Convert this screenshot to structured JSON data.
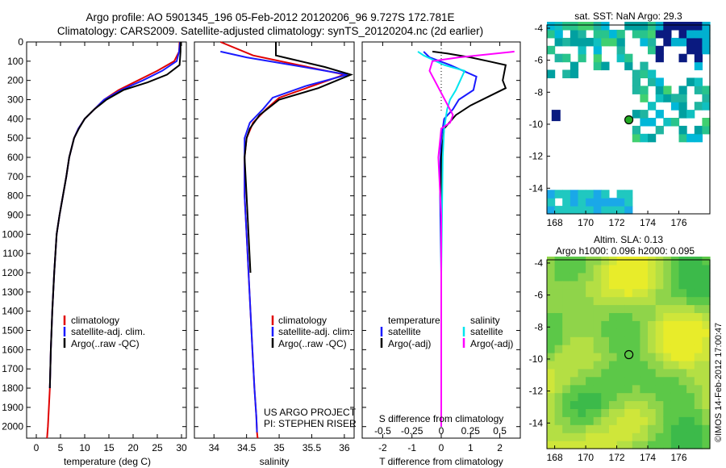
{
  "title_line1": "Argo profile: AO 5901345_196 05-Feb-2012 20120206_96 9.727S 172.781E",
  "title_line2": "Climatology: CARS2009. Satellite-adjusted climatology: synTS_20120204.nc (2d earlier)",
  "colors": {
    "climatology": "#e00000",
    "satellite": "#1a1aff",
    "argo": "#000000",
    "sal_satellite": "#00e5ee",
    "sal_argo": "#ff00ff"
  },
  "chart_data": [
    {
      "id": "temperature",
      "type": "line",
      "xlabel": "temperature (deg C)",
      "ylabel": "",
      "xlim": [
        -2,
        31
      ],
      "ylim": [
        2060,
        0
      ],
      "xticks": [
        0,
        5,
        10,
        15,
        20,
        25,
        30
      ],
      "yticks": [
        0,
        100,
        200,
        300,
        400,
        500,
        600,
        700,
        800,
        900,
        1000,
        1100,
        1200,
        1300,
        1400,
        1500,
        1600,
        1700,
        1800,
        1900,
        2000
      ],
      "legend": [
        "climatology",
        "satellite-adj. clim.",
        "Argo(..raw -QC)"
      ],
      "legend_position": "lower-center",
      "series": [
        {
          "name": "climatology",
          "color_key": "climatology",
          "x": [
            29.6,
            29.5,
            28.5,
            25.0,
            21.0,
            17.0,
            14.0,
            12.0,
            10.0,
            8.7,
            7.8,
            6.8,
            6.2,
            5.5,
            4.8,
            4.2,
            3.7,
            3.3,
            3.0,
            2.8,
            2.6,
            2.4,
            2.25,
            2.2
          ],
          "depth": [
            0,
            50,
            100,
            150,
            200,
            250,
            300,
            350,
            400,
            450,
            500,
            600,
            700,
            800,
            900,
            1000,
            1200,
            1400,
            1600,
            1800,
            1900,
            2000,
            2050,
            2060
          ]
        },
        {
          "name": "satellite-adj. clim.",
          "color_key": "satellite",
          "x": [
            29.7,
            29.5,
            29.0,
            26.0,
            22.0,
            17.5,
            14.0,
            12.0,
            10.0,
            8.7,
            7.8,
            6.8,
            6.2,
            5.5,
            4.8,
            4.2,
            3.7,
            3.3,
            3.0,
            2.8
          ],
          "depth": [
            0,
            50,
            100,
            150,
            200,
            250,
            300,
            350,
            400,
            450,
            500,
            600,
            700,
            800,
            900,
            1000,
            1200,
            1400,
            1600,
            1800
          ]
        },
        {
          "name": "Argo(..raw -QC)",
          "color_key": "argo",
          "x": [
            29.8,
            29.8,
            29.6,
            27.0,
            23.0,
            18.0,
            14.5,
            12.0,
            10.0,
            8.8,
            7.8,
            6.8,
            6.2,
            5.5,
            4.8,
            4.2,
            3.7,
            3.3,
            3.0,
            2.8
          ],
          "depth": [
            0,
            50,
            120,
            170,
            210,
            250,
            300,
            350,
            400,
            450,
            500,
            600,
            700,
            800,
            900,
            1000,
            1200,
            1400,
            1600,
            1800
          ]
        }
      ]
    },
    {
      "id": "salinity",
      "type": "line",
      "xlabel": "salinity",
      "ylabel": "",
      "xlim": [
        33.7,
        36.15
      ],
      "ylim": [
        2060,
        0
      ],
      "xticks": [
        34,
        34.5,
        35,
        35.5,
        36
      ],
      "legend": [
        "climatology",
        "satellite-adj. clim.",
        "Argo(..raw -QC)"
      ],
      "legend_position": "lower-center",
      "annotations": [
        "US ARGO PROJECT",
        "PI: STEPHEN RISER"
      ],
      "series": [
        {
          "name": "climatology",
          "color_key": "climatology",
          "x": [
            34.1,
            34.6,
            35.3,
            36.0,
            35.5,
            35.0,
            34.8,
            34.6,
            34.5,
            34.47,
            34.47,
            34.5,
            34.53,
            34.56,
            34.59,
            34.62,
            34.65,
            34.66,
            34.67
          ],
          "depth": [
            0,
            70,
            120,
            170,
            230,
            290,
            350,
            420,
            500,
            600,
            800,
            1000,
            1200,
            1400,
            1600,
            1800,
            1950,
            2030,
            2060
          ]
        },
        {
          "name": "satellite-adj. clim.",
          "color_key": "satellite",
          "x": [
            34.1,
            34.5,
            35.2,
            36.05,
            35.4,
            34.9,
            34.75,
            34.55,
            34.47,
            34.47,
            34.47,
            34.5,
            34.53,
            34.56,
            34.59,
            34.62,
            34.65,
            34.66
          ],
          "depth": [
            50,
            80,
            120,
            170,
            230,
            290,
            350,
            420,
            500,
            600,
            800,
            1000,
            1200,
            1400,
            1600,
            1800,
            1950,
            2030
          ]
        },
        {
          "name": "Argo(..raw -QC)",
          "color_key": "argo",
          "x": [
            34.95,
            34.95,
            35.2,
            35.7,
            36.1,
            35.6,
            35.0,
            34.7,
            34.55,
            34.5,
            34.47,
            34.5,
            34.53,
            34.56
          ],
          "depth": [
            0,
            70,
            90,
            130,
            170,
            240,
            300,
            380,
            450,
            500,
            600,
            800,
            1000,
            1200
          ]
        }
      ]
    },
    {
      "id": "difference",
      "type": "line",
      "xlabel": "T difference from climatology",
      "xlabel_top": "S difference from climatology",
      "ylabel": "",
      "xlim": [
        -2.7,
        2.7
      ],
      "ylim": [
        2060,
        0
      ],
      "xticks": [
        -2,
        -1,
        0,
        1,
        2
      ],
      "xticks_s": [
        -0.5,
        -0.25,
        0,
        0.25,
        0.5
      ],
      "legend_left_title": "temperature",
      "legend_right_title": "salinity",
      "legend": [
        "satellite",
        "Argo(-adj)",
        "satellite",
        "Argo(-adj)"
      ],
      "legend_position": "lower-center",
      "series": [
        {
          "name": "satellite",
          "color_key": "satellite",
          "x": [
            -0.6,
            -0.4,
            0.3,
            1.2,
            1.1,
            0.6,
            0.4,
            0.1,
            0.0,
            -0.05,
            0.0,
            0.0
          ],
          "depth": [
            50,
            80,
            120,
            180,
            250,
            300,
            350,
            400,
            500,
            700,
            1200,
            2000
          ]
        },
        {
          "name": "Argo(-adj)",
          "color_key": "argo",
          "x": [
            -0.3,
            0.2,
            1.0,
            1.6,
            2.2,
            2.1,
            2.2,
            1.0,
            0.5,
            0.1,
            0.0,
            0.0,
            0.0
          ],
          "depth": [
            50,
            60,
            80,
            100,
            120,
            200,
            240,
            330,
            380,
            450,
            600,
            1200,
            2000
          ]
        },
        {
          "name": "satellite",
          "color_key": "sal_satellite",
          "x": [
            -0.8,
            -0.6,
            0.1,
            0.8,
            0.5,
            0.3,
            0.2,
            0.1,
            0.05,
            0.0,
            0.0
          ],
          "depth": [
            50,
            70,
            120,
            150,
            250,
            300,
            350,
            450,
            600,
            1200,
            2000
          ]
        },
        {
          "name": "Argo(-adj)",
          "color_key": "sal_argo",
          "x": [
            2.5,
            0.6,
            -0.3,
            -0.4,
            0.4,
            0.3,
            0.0,
            -0.1,
            0.0,
            0.0,
            0.0
          ],
          "depth": [
            50,
            80,
            100,
            150,
            380,
            420,
            450,
            600,
            900,
            1200,
            2000
          ]
        }
      ]
    },
    {
      "id": "sst_map",
      "type": "heatmap",
      "title": "sat. SST: NaN Argo: 29.3",
      "xlim": [
        167.5,
        178
      ],
      "ylim": [
        -15.6,
        -3.8
      ],
      "xticks": [
        168,
        170,
        172,
        174,
        176
      ],
      "yticks": [
        -4,
        -6,
        -8,
        -10,
        -12,
        -14
      ],
      "marker": {
        "lon": 172.781,
        "lat": -9.727
      }
    },
    {
      "id": "sla_map",
      "type": "heatmap",
      "title": "Altim. SLA: 0.13",
      "subtitle": "Argo h1000: 0.096 h2000: 0.095",
      "xlim": [
        167.5,
        178
      ],
      "ylim": [
        -15.6,
        -3.8
      ],
      "xticks": [
        168,
        170,
        172,
        174,
        176
      ],
      "yticks": [
        -4,
        -6,
        -8,
        -10,
        -12,
        -14
      ],
      "marker": {
        "lon": 172.781,
        "lat": -9.727
      }
    }
  ],
  "watermark": "©IMOS 14-Feb-2012 17:00:47"
}
